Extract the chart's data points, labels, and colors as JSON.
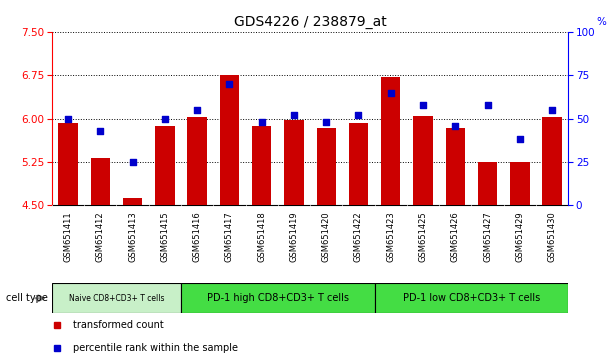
{
  "title": "GDS4226 / 238879_at",
  "samples": [
    "GSM651411",
    "GSM651412",
    "GSM651413",
    "GSM651415",
    "GSM651416",
    "GSM651417",
    "GSM651418",
    "GSM651419",
    "GSM651420",
    "GSM651422",
    "GSM651423",
    "GSM651425",
    "GSM651426",
    "GSM651427",
    "GSM651429",
    "GSM651430"
  ],
  "bar_values": [
    5.92,
    5.32,
    4.62,
    5.88,
    6.02,
    6.75,
    5.88,
    5.98,
    5.84,
    5.92,
    6.72,
    6.05,
    5.84,
    5.25,
    5.25,
    6.02
  ],
  "percentile_values": [
    50,
    43,
    25,
    50,
    55,
    70,
    48,
    52,
    48,
    52,
    65,
    58,
    46,
    58,
    38,
    55
  ],
  "ylim_left": [
    4.5,
    7.5
  ],
  "ylim_right": [
    0,
    100
  ],
  "yticks_left": [
    4.5,
    5.25,
    6.0,
    6.75,
    7.5
  ],
  "yticks_right": [
    0,
    25,
    50,
    75,
    100
  ],
  "bar_color": "#cc0000",
  "dot_color": "#0000cc",
  "cell_type_groups": [
    {
      "label": "Naive CD8+CD3+ T cells",
      "start": 0,
      "end": 4,
      "color": "#c8f0c8"
    },
    {
      "label": "PD-1 high CD8+CD3+ T cells",
      "start": 4,
      "end": 10,
      "color": "#44dd44"
    },
    {
      "label": "PD-1 low CD8+CD3+ T cells",
      "start": 10,
      "end": 16,
      "color": "#44dd44"
    }
  ],
  "xtick_bg_color": "#d8d8d8",
  "legend_bar_label": "transformed count",
  "legend_dot_label": "percentile rank within the sample",
  "cell_type_label": "cell type",
  "bar_width": 0.6
}
